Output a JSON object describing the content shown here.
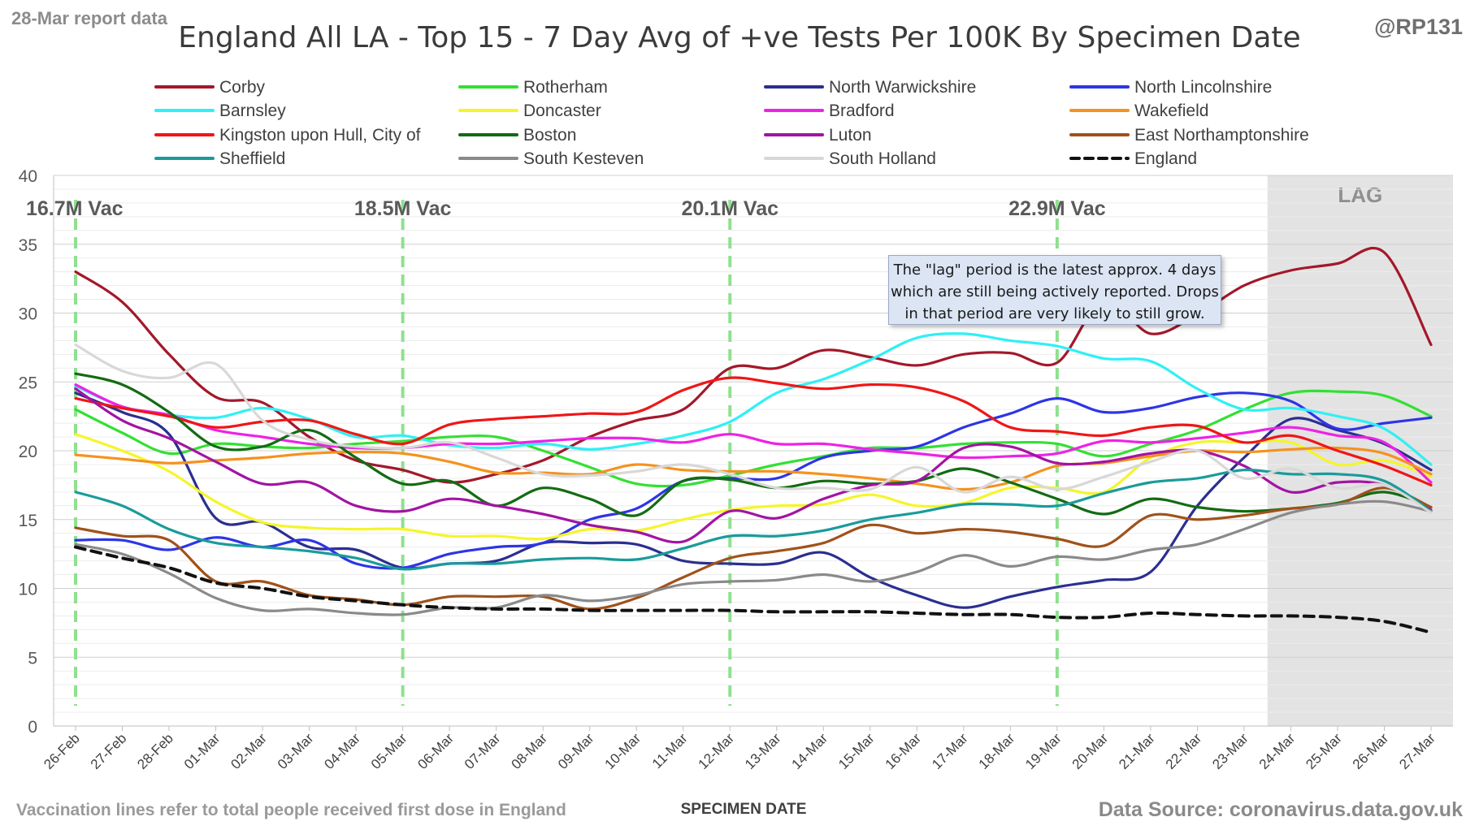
{
  "header": {
    "report_label": "28-Mar report data",
    "handle": "@RP131"
  },
  "footer": {
    "vaccination_note": "Vaccination lines refer to total people received first dose in England",
    "source": "Data Source: coronavirus.data.gov.uk"
  },
  "chart_data": {
    "type": "line",
    "title": "England All LA - Top 15 - 7 Day Avg of +ve Tests Per 100K By Specimen Date",
    "xlabel": "SPECIMEN DATE",
    "ylabel": "",
    "ylim": [
      0,
      40
    ],
    "yticks": [
      0,
      5,
      10,
      15,
      20,
      25,
      30,
      35,
      40
    ],
    "grid": true,
    "legend_position": "top",
    "categories": [
      "26-Feb",
      "27-Feb",
      "28-Feb",
      "01-Mar",
      "02-Mar",
      "03-Mar",
      "04-Mar",
      "05-Mar",
      "06-Mar",
      "07-Mar",
      "08-Mar",
      "09-Mar",
      "10-Mar",
      "11-Mar",
      "12-Mar",
      "13-Mar",
      "14-Mar",
      "15-Mar",
      "16-Mar",
      "17-Mar",
      "18-Mar",
      "19-Mar",
      "20-Mar",
      "21-Mar",
      "22-Mar",
      "23-Mar",
      "24-Mar",
      "25-Mar",
      "26-Mar",
      "27-Mar"
    ],
    "lag_region": {
      "from": "24-Mar",
      "to": "27-Mar",
      "label": "LAG"
    },
    "annotation": "The \"lag\" period is the latest approx. 4 days which are still being actively reported. Drops in that period are very likely to still grow.",
    "vaccination_lines": [
      {
        "date": "26-Feb",
        "label": "16.7M Vac"
      },
      {
        "date": "05-Mar",
        "label": "18.5M Vac"
      },
      {
        "date": "12-Mar",
        "label": "20.1M Vac"
      },
      {
        "date": "19-Mar",
        "label": "22.9M Vac"
      }
    ],
    "series": [
      {
        "name": "Corby",
        "color": "#a3182a",
        "values": [
          33.0,
          30.8,
          27.0,
          23.9,
          23.5,
          21.0,
          19.3,
          18.6,
          17.7,
          18.3,
          19.3,
          21.0,
          22.2,
          23.0,
          26.0,
          26.0,
          27.3,
          26.8,
          26.2,
          27.0,
          27.1,
          26.4,
          31.0,
          28.5,
          29.9,
          32.0,
          33.1,
          33.6,
          34.4,
          27.7
        ]
      },
      {
        "name": "Rotherham",
        "color": "#33e033",
        "values": [
          23.0,
          21.3,
          19.8,
          20.5,
          20.3,
          20.2,
          20.5,
          20.7,
          21.0,
          21.0,
          20.0,
          18.8,
          17.6,
          17.5,
          18.2,
          19.0,
          19.6,
          20.2,
          20.2,
          20.5,
          20.6,
          20.5,
          19.6,
          20.5,
          21.5,
          23.0,
          24.2,
          24.3,
          24.0,
          22.5
        ]
      },
      {
        "name": "North Warwickshire",
        "color": "#2b2f8f",
        "values": [
          24.2,
          22.8,
          21.2,
          15.1,
          14.8,
          13.0,
          12.8,
          11.5,
          11.8,
          12.0,
          13.3,
          13.3,
          13.2,
          12.0,
          11.8,
          11.8,
          12.6,
          10.8,
          9.5,
          8.6,
          9.4,
          10.1,
          10.6,
          11.2,
          16.0,
          19.5,
          22.3,
          21.5,
          20.5,
          18.6
        ]
      },
      {
        "name": "North Lincolnshire",
        "color": "#2d35e6",
        "values": [
          13.5,
          13.5,
          12.8,
          13.7,
          13.0,
          13.5,
          11.8,
          11.5,
          12.5,
          13.0,
          13.3,
          15.0,
          15.8,
          17.8,
          18.0,
          18.0,
          19.5,
          20.0,
          20.3,
          21.7,
          22.7,
          23.8,
          22.8,
          23.1,
          23.9,
          24.2,
          23.6,
          21.6,
          22.0,
          22.4
        ]
      },
      {
        "name": "Barnsley",
        "color": "#2ff0f5",
        "values": [
          24.7,
          23.2,
          22.6,
          22.4,
          23.1,
          22.3,
          21.0,
          21.1,
          20.4,
          20.2,
          20.5,
          20.1,
          20.5,
          21.1,
          22.1,
          24.2,
          25.2,
          26.6,
          28.2,
          28.5,
          28.0,
          27.6,
          26.7,
          26.5,
          24.5,
          23.0,
          23.1,
          22.5,
          21.6,
          19.0
        ]
      },
      {
        "name": "Doncaster",
        "color": "#f5f52a",
        "values": [
          21.2,
          20.0,
          18.5,
          16.3,
          14.8,
          14.4,
          14.3,
          14.3,
          13.8,
          13.8,
          13.6,
          14.3,
          14.2,
          15.0,
          15.7,
          16.0,
          16.1,
          16.8,
          16.0,
          16.2,
          17.3,
          17.3,
          17.0,
          19.5,
          20.6,
          20.6,
          20.6,
          19.0,
          19.3,
          18.1
        ]
      },
      {
        "name": "Bradford",
        "color": "#ee22e6",
        "values": [
          24.8,
          23.2,
          22.6,
          21.5,
          21.0,
          20.5,
          20.2,
          20.2,
          20.5,
          20.5,
          20.7,
          20.9,
          20.9,
          20.6,
          21.2,
          20.5,
          20.5,
          20.1,
          19.8,
          19.5,
          19.6,
          19.8,
          20.7,
          20.6,
          20.9,
          21.3,
          21.7,
          21.1,
          20.6,
          17.7
        ]
      },
      {
        "name": "Wakefield",
        "color": "#f5921e",
        "values": [
          19.7,
          19.4,
          19.1,
          19.3,
          19.5,
          19.8,
          19.9,
          19.8,
          19.2,
          18.4,
          18.4,
          18.3,
          19.0,
          18.6,
          18.5,
          18.5,
          18.3,
          18.0,
          17.6,
          17.2,
          17.7,
          18.9,
          19.1,
          19.6,
          20.0,
          19.9,
          20.1,
          20.2,
          19.8,
          18.3
        ]
      },
      {
        "name": "Kingston upon Hull, City of",
        "color": "#f01616",
        "values": [
          23.8,
          23.1,
          22.5,
          21.7,
          22.1,
          22.2,
          21.2,
          20.5,
          21.9,
          22.3,
          22.5,
          22.7,
          22.8,
          24.4,
          25.3,
          24.9,
          24.5,
          24.8,
          24.6,
          23.6,
          21.7,
          21.4,
          21.1,
          21.7,
          21.8,
          20.6,
          21.1,
          20.0,
          18.9,
          17.5
        ]
      },
      {
        "name": "Boston",
        "color": "#136b13",
        "values": [
          25.6,
          24.8,
          22.8,
          20.3,
          20.3,
          21.5,
          19.5,
          17.6,
          17.8,
          16.0,
          17.3,
          16.5,
          15.3,
          17.8,
          17.9,
          17.3,
          17.8,
          17.6,
          17.8,
          18.7,
          17.7,
          16.5,
          15.4,
          16.5,
          15.9,
          15.6,
          15.8,
          16.2,
          17.0,
          15.9
        ]
      },
      {
        "name": "Luton",
        "color": "#a214a3",
        "values": [
          24.5,
          22.2,
          20.9,
          19.2,
          17.6,
          17.7,
          16.0,
          15.6,
          16.5,
          16.0,
          15.4,
          14.6,
          14.1,
          13.4,
          15.6,
          15.1,
          16.5,
          17.5,
          17.8,
          20.2,
          20.3,
          19.1,
          19.2,
          19.8,
          20.0,
          18.9,
          17.0,
          17.7,
          17.5,
          15.7
        ]
      },
      {
        "name": "East Northamptonshire",
        "color": "#a0521a",
        "values": [
          14.4,
          13.8,
          13.5,
          10.5,
          10.5,
          9.5,
          9.2,
          8.8,
          9.4,
          9.4,
          9.4,
          8.5,
          9.3,
          10.8,
          12.2,
          12.7,
          13.3,
          14.6,
          14.0,
          14.3,
          14.1,
          13.6,
          13.1,
          15.3,
          15.0,
          15.3,
          15.8,
          16.1,
          17.3,
          15.9
        ]
      },
      {
        "name": "Sheffield",
        "color": "#1a9b9b",
        "values": [
          17.0,
          16.0,
          14.3,
          13.3,
          13.0,
          12.7,
          12.2,
          11.4,
          11.8,
          11.8,
          12.1,
          12.2,
          12.1,
          12.9,
          13.8,
          13.8,
          14.2,
          15.0,
          15.5,
          16.1,
          16.1,
          16.0,
          16.9,
          17.7,
          18.0,
          18.6,
          18.3,
          18.3,
          17.8,
          15.6
        ]
      },
      {
        "name": "South Kesteven",
        "color": "#8a8a8a",
        "values": [
          13.2,
          12.5,
          11.1,
          9.3,
          8.4,
          8.5,
          8.2,
          8.1,
          8.6,
          8.6,
          9.5,
          9.1,
          9.5,
          10.3,
          10.5,
          10.6,
          11.0,
          10.5,
          11.2,
          12.4,
          11.6,
          12.3,
          12.1,
          12.8,
          13.2,
          14.3,
          15.5,
          16.1,
          16.3,
          15.6
        ]
      },
      {
        "name": "South Holland",
        "color": "#d8d8d8",
        "values": [
          27.7,
          25.8,
          25.3,
          26.3,
          22.2,
          20.8,
          20.3,
          20.2,
          20.6,
          19.5,
          18.3,
          18.2,
          18.5,
          19.0,
          18.3,
          17.3,
          17.3,
          17.2,
          18.8,
          17.0,
          18.1,
          17.2,
          18.1,
          19.2,
          20.0,
          18.0,
          18.7,
          17.3,
          17.5,
          15.5
        ]
      },
      {
        "name": "England",
        "color": "#111111",
        "dashed": true,
        "values": [
          13.0,
          12.2,
          11.5,
          10.4,
          10.0,
          9.4,
          9.1,
          8.8,
          8.6,
          8.5,
          8.5,
          8.4,
          8.4,
          8.4,
          8.4,
          8.3,
          8.3,
          8.3,
          8.2,
          8.1,
          8.1,
          7.9,
          7.9,
          8.2,
          8.1,
          8.0,
          8.0,
          7.9,
          7.6,
          6.8
        ]
      }
    ]
  }
}
